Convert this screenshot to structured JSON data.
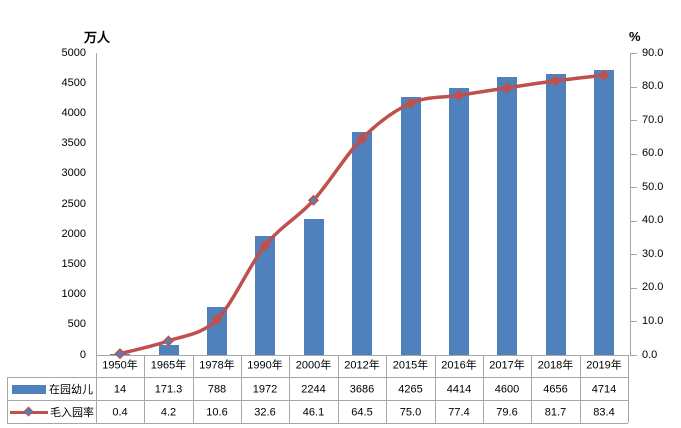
{
  "chart_data": {
    "type": "bar+line",
    "title": "",
    "categories": [
      "1950年",
      "1965年",
      "1978年",
      "1990年",
      "2000年",
      "2012年",
      "2015年",
      "2016年",
      "2017年",
      "2018年",
      "2019年"
    ],
    "series": [
      {
        "name": "在园幼儿",
        "type": "bar",
        "axis": "left",
        "color": "#4F81BD",
        "values": [
          14,
          171.3,
          788,
          1972,
          2244,
          3686,
          4265,
          4414,
          4600,
          4656,
          4714
        ],
        "display": [
          "14",
          "171.3",
          "788",
          "1972",
          "2244",
          "3686",
          "4265",
          "4414",
          "4600",
          "4656",
          "4714"
        ]
      },
      {
        "name": "毛入园率",
        "type": "line",
        "axis": "right",
        "color": "#C0504D",
        "marker": "diamond",
        "values": [
          0.4,
          4.2,
          10.6,
          32.6,
          46.1,
          64.5,
          75.0,
          77.4,
          79.6,
          81.7,
          83.4
        ],
        "display": [
          "0.4",
          "4.2",
          "10.6",
          "32.6",
          "46.1",
          "64.5",
          "75.0",
          "77.4",
          "79.6",
          "81.7",
          "83.4"
        ]
      }
    ],
    "left_axis": {
      "title": "万人",
      "min": 0,
      "max": 5000,
      "step": 500,
      "tick_labels": [
        "0",
        "500",
        "1000",
        "1500",
        "2000",
        "2500",
        "3000",
        "3500",
        "4000",
        "4500",
        "5000"
      ]
    },
    "right_axis": {
      "title": "%",
      "min": 0,
      "max": 90,
      "step": 10,
      "tick_labels": [
        "0.0",
        "10.0",
        "20.0",
        "30.0",
        "40.0",
        "50.0",
        "60.0",
        "70.0",
        "80.0",
        "90.0"
      ]
    },
    "grid": false,
    "legend_position": "data-table-left",
    "data_table_shown": true,
    "highlighted_marker_indices": [
      0,
      1,
      4
    ],
    "colors": {
      "bar": "#4F81BD",
      "line": "#C0504D",
      "marker_highlight_fill": "#4F81BD",
      "axis_and_grid": "#A6A6A6",
      "text": "#000000"
    }
  }
}
